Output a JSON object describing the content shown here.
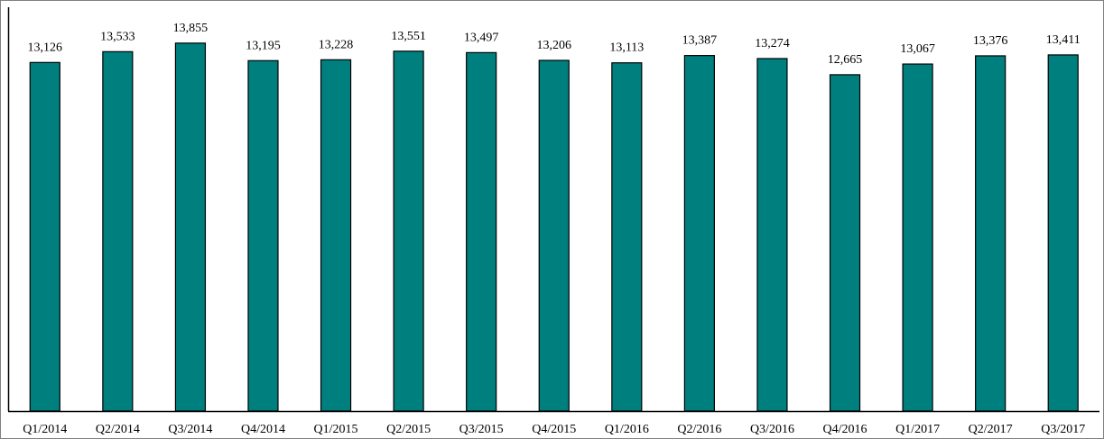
{
  "chart_data": {
    "type": "bar",
    "title": "",
    "xlabel": "",
    "ylabel": "",
    "categories": [
      "Q1/2014",
      "Q2/2014",
      "Q3/2014",
      "Q4/2014",
      "Q1/2015",
      "Q2/2015",
      "Q3/2015",
      "Q4/2015",
      "Q1/2016",
      "Q2/2016",
      "Q3/2016",
      "Q4/2016",
      "Q1/2017",
      "Q2/2017",
      "Q3/2017"
    ],
    "values": [
      13126,
      13533,
      13855,
      13195,
      13228,
      13551,
      13497,
      13206,
      13113,
      13387,
      13274,
      12665,
      13067,
      13376,
      13411
    ],
    "data_labels": [
      "13,126",
      "13,533",
      "13,855",
      "13,195",
      "13,228",
      "13,551",
      "13,497",
      "13,206",
      "13,113",
      "13,387",
      "13,274",
      "12,665",
      "13,067",
      "13,376",
      "13,411"
    ],
    "ylim": [
      0,
      14800
    ],
    "grid": false,
    "legend": "none",
    "bar_color": "#007f7f",
    "bar_edge_color": "#000000",
    "axis_color": "#000000",
    "frame_color": "#808080"
  }
}
